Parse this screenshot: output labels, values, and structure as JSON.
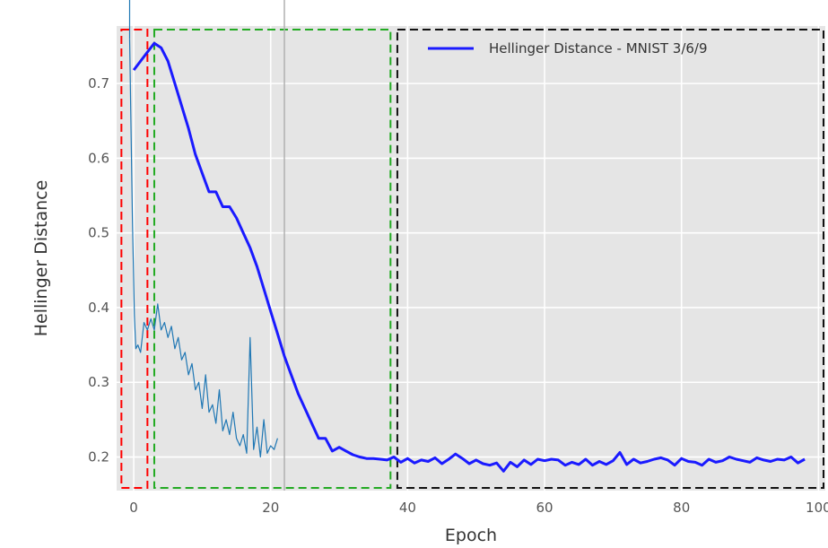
{
  "chart_data": {
    "type": "line",
    "title": "",
    "xlabel": "Epoch",
    "ylabel": "Hellinger Distance",
    "xlim": [
      -2.5,
      101
    ],
    "ylim": [
      0.155,
      0.777
    ],
    "xticks": [
      0,
      20,
      40,
      60,
      80,
      100
    ],
    "yticks": [
      0.2,
      0.3,
      0.4,
      0.5,
      0.6,
      0.7
    ],
    "xtick_labels": [
      "0",
      "20",
      "40",
      "60",
      "80",
      "100"
    ],
    "ytick_labels": [
      "0.2",
      "0.3",
      "0.4",
      "0.5",
      "0.6",
      "0.7"
    ],
    "grid": true,
    "legend_placement": "top-right",
    "background": "#e5e5e5",
    "series": [
      {
        "name": "Hellinger Distance - MNIST 3/6/9",
        "color": "#1a1aff",
        "style": "solid-thick",
        "x": [
          0,
          1,
          2,
          3,
          4,
          5,
          6,
          7,
          8,
          9,
          10,
          11,
          12,
          13,
          14,
          15,
          16,
          17,
          18,
          19,
          20,
          21,
          22,
          23,
          24,
          25,
          26,
          27,
          28,
          29,
          30,
          31,
          32,
          33,
          34,
          35,
          36,
          37,
          38,
          39,
          40,
          41,
          42,
          43,
          44,
          45,
          46,
          47,
          48,
          49,
          50,
          51,
          52,
          53,
          54,
          55,
          56,
          57,
          58,
          59,
          60,
          61,
          62,
          63,
          64,
          65,
          66,
          67,
          68,
          69,
          70,
          71,
          72,
          73,
          74,
          75,
          76,
          77,
          78,
          79,
          80,
          81,
          82,
          83,
          84,
          85,
          86,
          87,
          88,
          89,
          90,
          91,
          92,
          93,
          94,
          95,
          96,
          97,
          98
        ],
        "y": [
          0.718,
          0.73,
          0.742,
          0.754,
          0.748,
          0.73,
          0.7,
          0.67,
          0.64,
          0.605,
          0.58,
          0.555,
          0.555,
          0.535,
          0.535,
          0.52,
          0.5,
          0.48,
          0.455,
          0.425,
          0.395,
          0.365,
          0.335,
          0.31,
          0.285,
          0.265,
          0.245,
          0.225,
          0.225,
          0.208,
          0.213,
          0.208,
          0.203,
          0.2,
          0.198,
          0.198,
          0.197,
          0.196,
          0.2,
          0.193,
          0.198,
          0.192,
          0.196,
          0.194,
          0.199,
          0.191,
          0.197,
          0.204,
          0.198,
          0.191,
          0.196,
          0.191,
          0.189,
          0.192,
          0.181,
          0.193,
          0.187,
          0.196,
          0.19,
          0.197,
          0.195,
          0.197,
          0.196,
          0.189,
          0.193,
          0.19,
          0.197,
          0.189,
          0.194,
          0.19,
          0.195,
          0.206,
          0.19,
          0.197,
          0.192,
          0.194,
          0.197,
          0.199,
          0.196,
          0.189,
          0.198,
          0.194,
          0.193,
          0.189,
          0.197,
          0.193,
          0.195,
          0.2,
          0.197,
          0.195,
          0.193,
          0.199,
          0.196,
          0.194,
          0.197,
          0.196,
          0.2,
          0.192,
          0.197
        ]
      },
      {
        "name": "",
        "color": "#1f77b4",
        "style": "solid-thin",
        "x": [
          -0.6,
          -0.2,
          0.1,
          0.3,
          0.6,
          1.0,
          1.5,
          2.0,
          2.5,
          3.0,
          3.5,
          4.0,
          4.5,
          5.0,
          5.5,
          6.0,
          6.5,
          7.0,
          7.5,
          8.0,
          8.5,
          9.0,
          9.5,
          10.0,
          10.5,
          11.0,
          11.5,
          12.0,
          12.5,
          13.0,
          13.5,
          14.0,
          14.5,
          15.0,
          15.5,
          16.0,
          16.5,
          17.0,
          17.5,
          18.0,
          18.5,
          19.0,
          19.5,
          20.0,
          20.5,
          21.0
        ],
        "y": [
          0.76,
          0.52,
          0.39,
          0.345,
          0.35,
          0.34,
          0.38,
          0.37,
          0.385,
          0.37,
          0.405,
          0.37,
          0.38,
          0.36,
          0.375,
          0.345,
          0.36,
          0.33,
          0.34,
          0.31,
          0.325,
          0.29,
          0.3,
          0.265,
          0.31,
          0.26,
          0.27,
          0.245,
          0.29,
          0.235,
          0.25,
          0.23,
          0.26,
          0.225,
          0.215,
          0.23,
          0.205,
          0.36,
          0.21,
          0.24,
          0.2,
          0.25,
          0.205,
          0.215,
          0.21,
          0.225
        ]
      }
    ],
    "vertical_lines": [
      {
        "x": 22,
        "color": "#b0b0b0",
        "style": "solid"
      }
    ],
    "regions": [
      {
        "x0": -1.8,
        "x1": 2.0,
        "color": "#ff0000",
        "style": "dashed"
      },
      {
        "x0": 3.0,
        "x1": 37.5,
        "color": "#22aa22",
        "style": "dashed"
      },
      {
        "x0": 38.5,
        "x1": 101,
        "color": "#111111",
        "style": "dashed"
      }
    ]
  }
}
